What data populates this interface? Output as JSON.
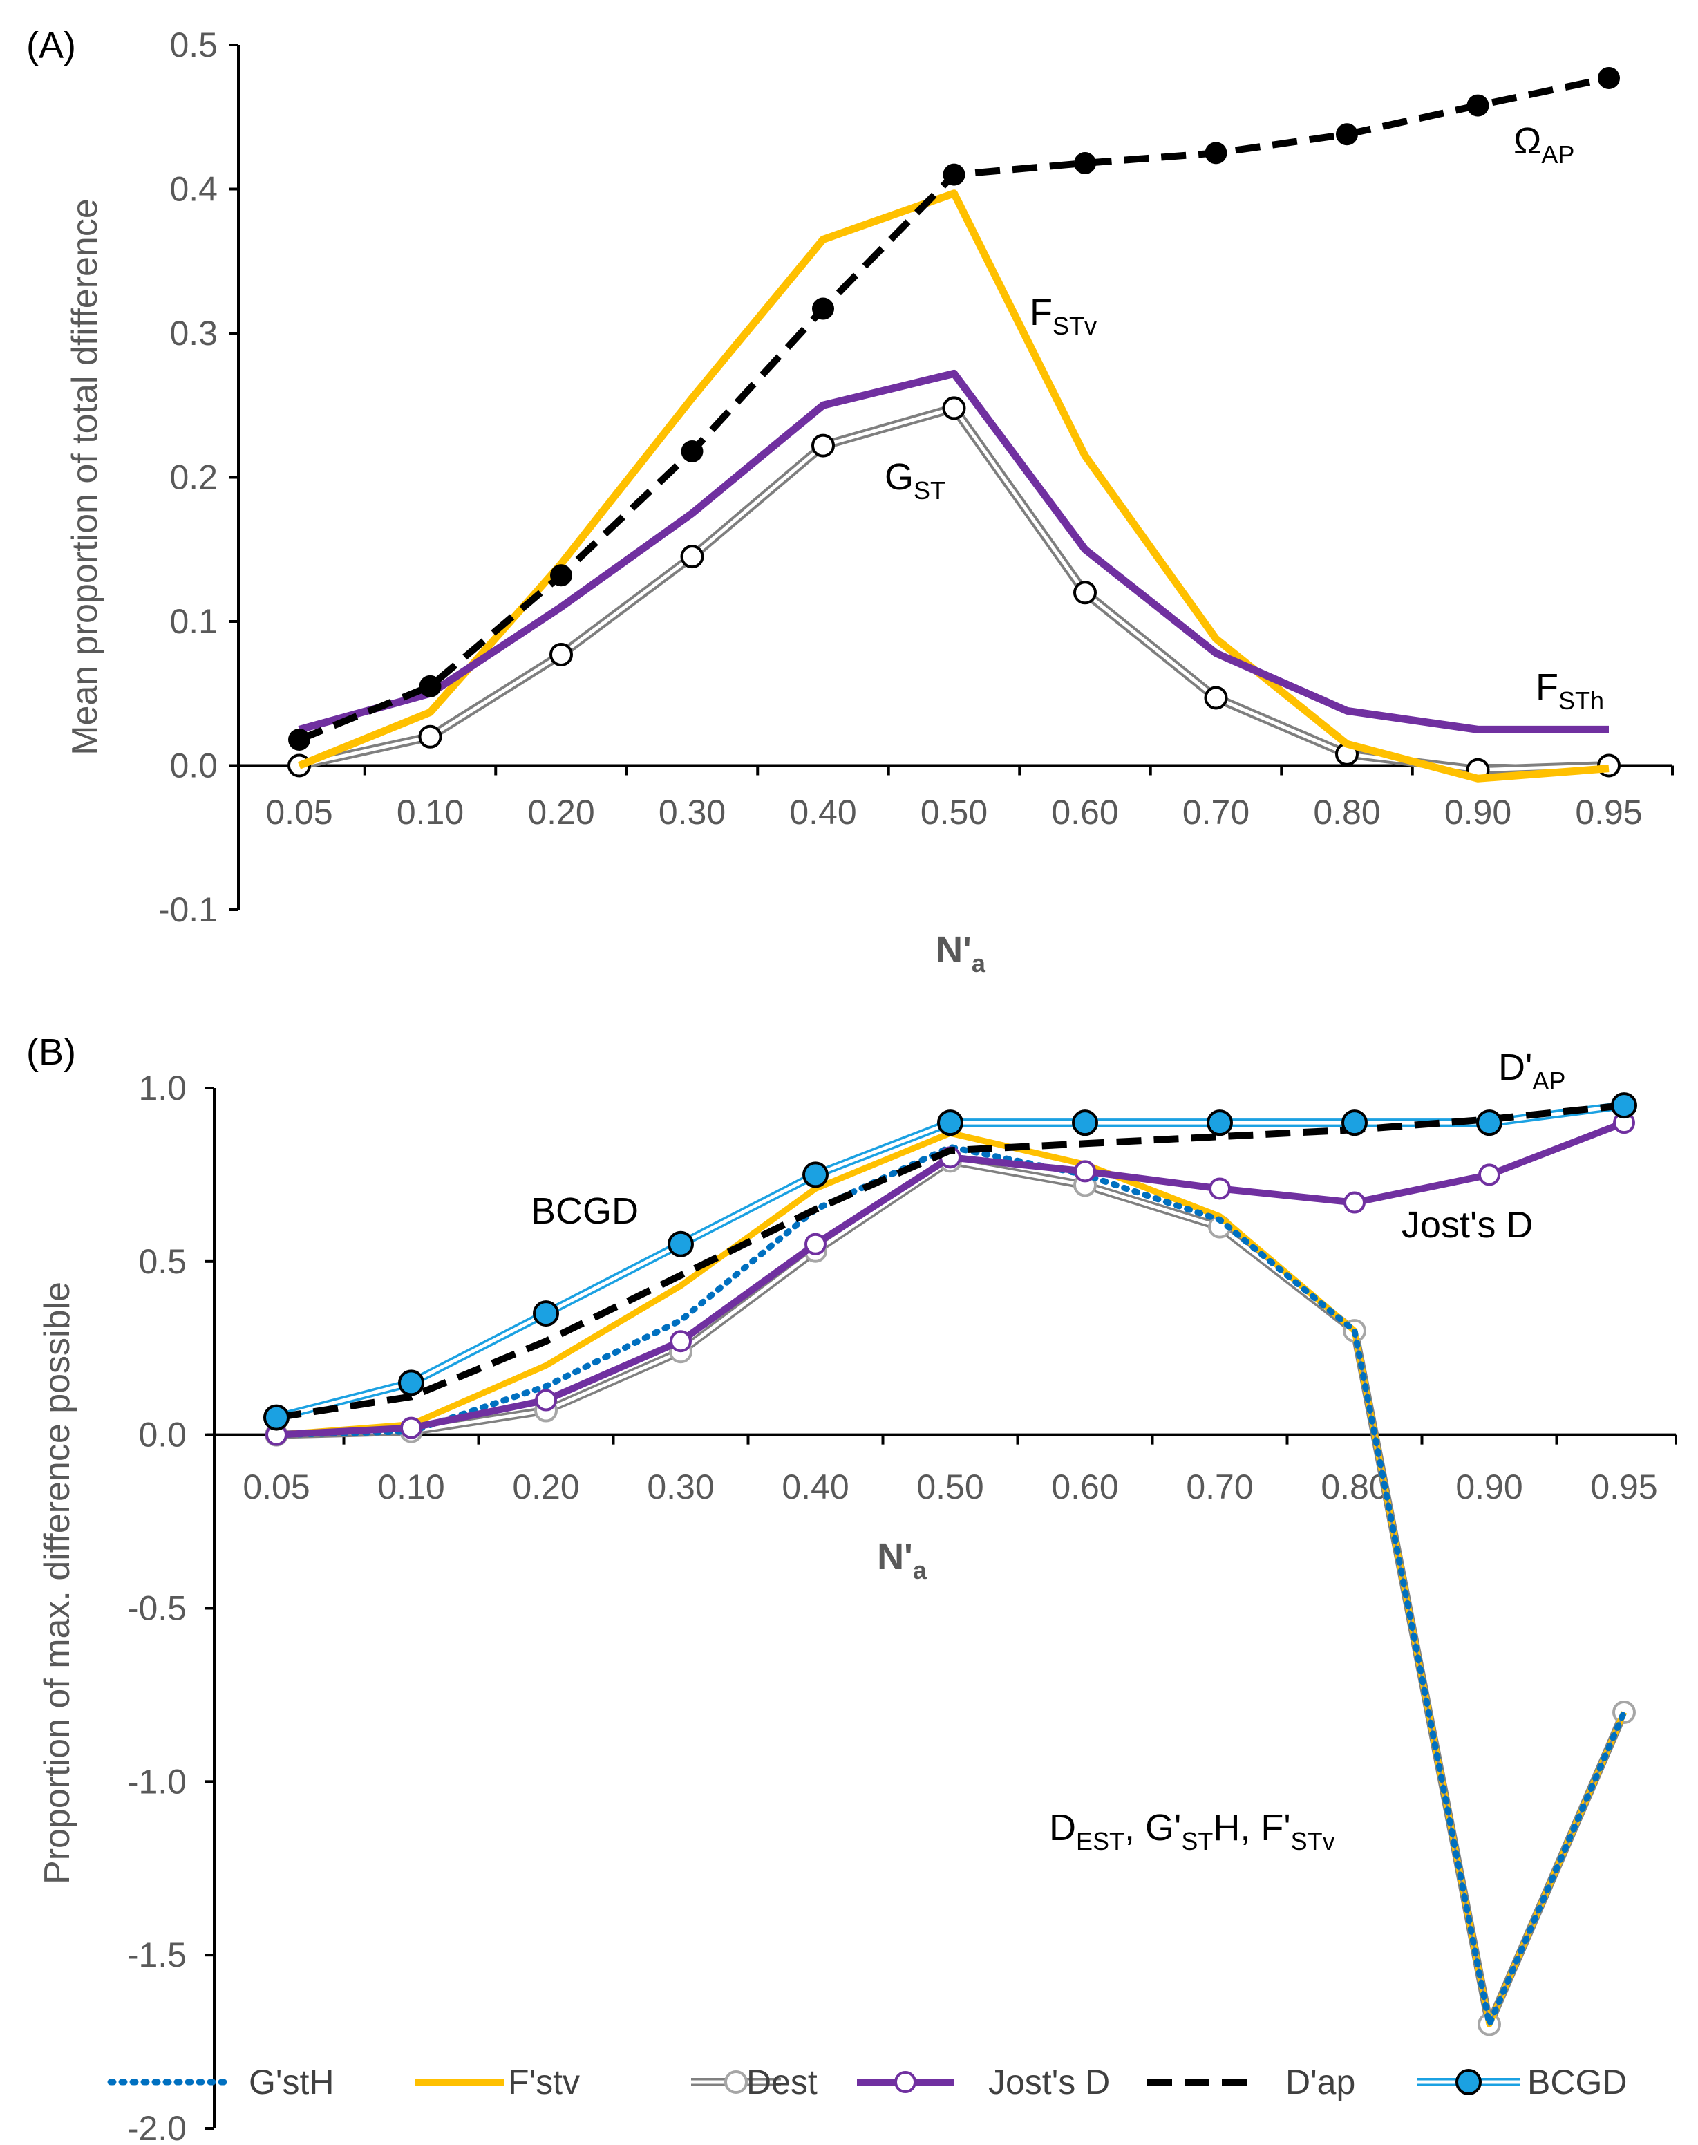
{
  "chart_data": [
    {
      "panel_label": "(A)",
      "type": "line",
      "xlabel": {
        "main": "N'",
        "sub": "a"
      },
      "ylabel": "Mean proportion of total dfifference",
      "categories": [
        "0.05",
        "0.10",
        "0.20",
        "0.30",
        "0.40",
        "0.50",
        "0.60",
        "0.70",
        "0.80",
        "0.90",
        "0.95"
      ],
      "ylim": [
        -0.1,
        0.5
      ],
      "yticks": [
        "-0.1",
        "0.0",
        "0.1",
        "0.2",
        "0.3",
        "0.4",
        "0.5"
      ],
      "series": [
        {
          "name": "FSTv",
          "color": "#FFC000",
          "values": [
            0.0,
            0.037,
            0.14,
            0.255,
            0.365,
            0.397,
            0.215,
            0.088,
            0.015,
            -0.009,
            -0.002
          ]
        },
        {
          "name": "FSTh",
          "color": "#7030A0",
          "values": [
            0.025,
            0.05,
            0.11,
            0.175,
            0.25,
            0.272,
            0.15,
            0.078,
            0.038,
            0.025,
            0.025
          ]
        },
        {
          "name": "GST",
          "color": "#808080",
          "values": [
            0.0,
            0.02,
            0.077,
            0.145,
            0.222,
            0.248,
            0.12,
            0.047,
            0.008,
            -0.003,
            0.0
          ]
        },
        {
          "name": "ΩAP",
          "color": "#000000",
          "values": [
            0.018,
            0.055,
            0.132,
            0.218,
            0.317,
            0.41,
            0.418,
            0.425,
            0.438,
            0.458,
            0.477
          ]
        }
      ],
      "annotations": [
        {
          "main": "Ω",
          "sub": "AP"
        },
        {
          "main": "F",
          "sub": "STv"
        },
        {
          "main": "G",
          "sub": "ST"
        },
        {
          "main": "F",
          "sub": "STh"
        }
      ]
    },
    {
      "panel_label": "(B)",
      "type": "line",
      "xlabel": {
        "main": "N'",
        "sub": "a"
      },
      "ylabel": "Proportion of max. difference possible",
      "categories": [
        "0.05",
        "0.10",
        "0.20",
        "0.30",
        "0.40",
        "0.50",
        "0.60",
        "0.70",
        "0.80",
        "0.90",
        "0.95"
      ],
      "ylim": [
        -2.0,
        1.0
      ],
      "yticks": [
        "-2.0",
        "-1.5",
        "-1.0",
        "-0.5",
        "0.0",
        "0.5",
        "1.0"
      ],
      "series": [
        {
          "name": "G'stH",
          "color": "#0070C0",
          "values": [
            0.0,
            0.01,
            0.14,
            0.33,
            0.65,
            0.83,
            0.75,
            0.62,
            0.3,
            -1.7,
            -0.8
          ]
        },
        {
          "name": "F'stv",
          "color": "#FFC000",
          "values": [
            0.0,
            0.03,
            0.2,
            0.43,
            0.71,
            0.87,
            0.78,
            0.63,
            0.3,
            -1.7,
            -0.8
          ]
        },
        {
          "name": "Dest",
          "color": "#808080",
          "values": [
            0.0,
            0.01,
            0.07,
            0.24,
            0.53,
            0.79,
            0.72,
            0.6,
            0.3,
            -1.7,
            -0.8
          ]
        },
        {
          "name": "Jost's D",
          "color": "#7030A0",
          "values": [
            0.0,
            0.02,
            0.1,
            0.27,
            0.55,
            0.8,
            0.76,
            0.71,
            0.67,
            0.75,
            0.9
          ]
        },
        {
          "name": "D'ap",
          "color": "#000000",
          "values": [
            0.05,
            0.11,
            0.27,
            0.46,
            0.65,
            0.82,
            0.84,
            0.86,
            0.88,
            0.91,
            0.95
          ]
        },
        {
          "name": "BCGD",
          "color": "#1BA1E2",
          "values": [
            0.05,
            0.15,
            0.35,
            0.55,
            0.75,
            0.9,
            0.9,
            0.9,
            0.9,
            0.9,
            0.95
          ]
        }
      ],
      "annotations": [
        {
          "main": "D'",
          "sub": "AP"
        },
        {
          "main": "BCGD",
          "sub": ""
        },
        {
          "main": "Jost's D",
          "sub": ""
        },
        {
          "parts": [
            {
              "main": "D",
              "sub": "EST"
            },
            {
              "main": ", G'",
              "sub": "ST"
            },
            {
              "main": "H, F'",
              "sub": "STv"
            }
          ]
        }
      ],
      "legend": [
        "G'stH",
        "F'stv",
        "Dest",
        "Jost's D",
        "D'ap",
        "BCGD"
      ]
    }
  ]
}
